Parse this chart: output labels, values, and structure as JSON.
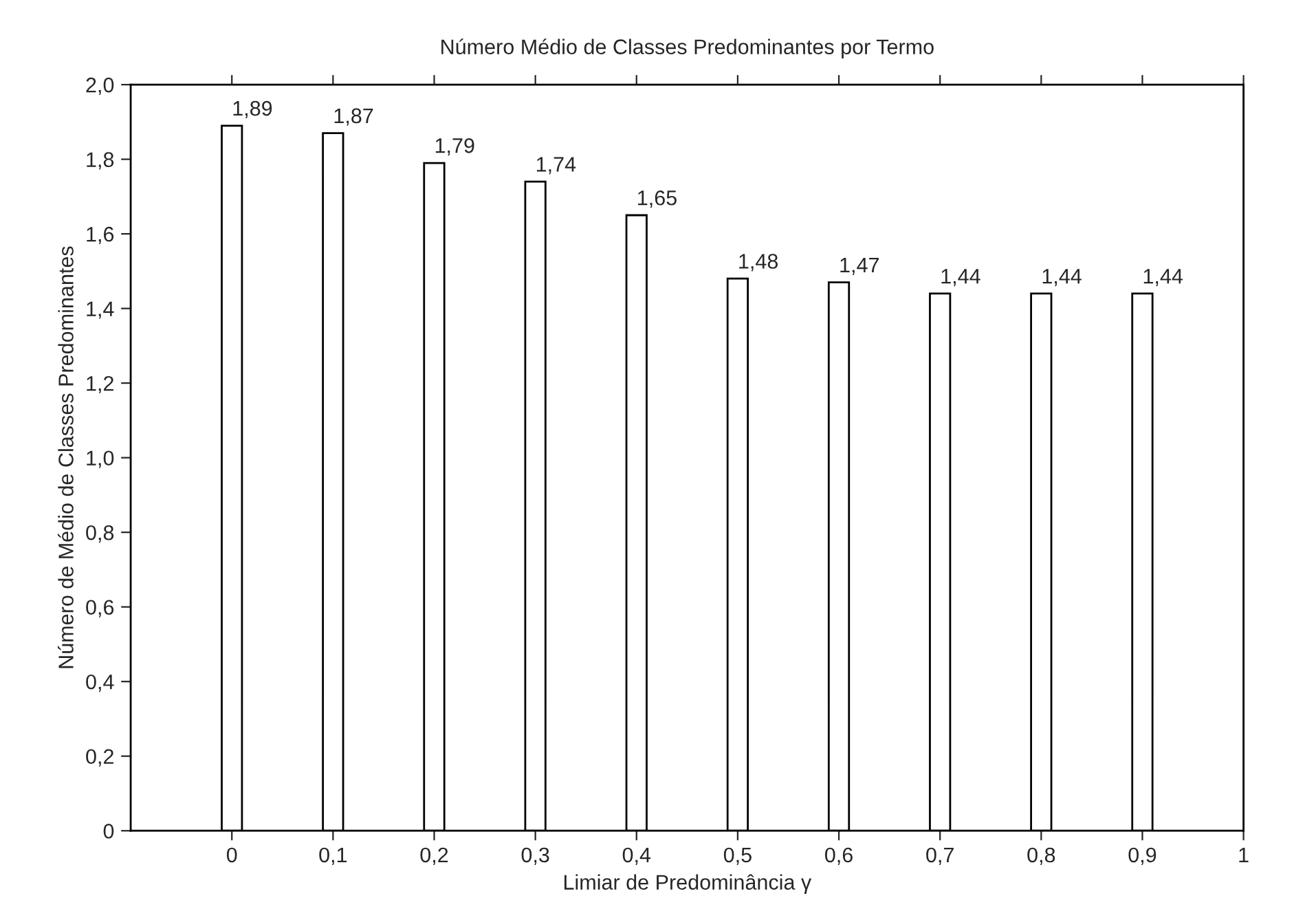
{
  "chart_data": {
    "type": "bar",
    "title": "Número Médio de Classes Predominantes por Termo",
    "xlabel": "Limiar de Predominância γ",
    "ylabel": "Número de Médio de Classes Predominantes",
    "x": [
      0,
      0.1,
      0.2,
      0.3,
      0.4,
      0.5,
      0.6,
      0.7,
      0.8,
      0.9
    ],
    "values": [
      1.89,
      1.87,
      1.79,
      1.74,
      1.65,
      1.48,
      1.47,
      1.44,
      1.44,
      1.44
    ],
    "value_labels": [
      "1,89",
      "1,87",
      "1,79",
      "1,74",
      "1,65",
      "1,48",
      "1,47",
      "1,44",
      "1,44",
      "1,44"
    ],
    "color": "#ffffff",
    "xlim": [
      -0.1,
      1.0
    ],
    "xticks": [
      0,
      {
        "value": 0.1,
        "label": "0,1"
      },
      {
        "value": 0.2,
        "label": "0,2"
      },
      {
        "value": 0.3,
        "label": "0,3"
      },
      {
        "value": 0.4,
        "label": "0,4"
      },
      {
        "value": 0.5,
        "label": "0,5"
      },
      {
        "value": 0.6,
        "label": "0,6"
      },
      {
        "value": 0.7,
        "label": "0,7"
      },
      {
        "value": 0.8,
        "label": "0,8"
      },
      {
        "value": 0.9,
        "label": "0,9"
      },
      1
    ],
    "ylim": [
      0,
      2.0
    ],
    "yticks": [
      0,
      {
        "value": 0.2,
        "label": "0,2"
      },
      {
        "value": 0.4,
        "label": "0,4"
      },
      {
        "value": 0.6,
        "label": "0,6"
      },
      {
        "value": 0.8,
        "label": "0,8"
      },
      {
        "value": 1.0,
        "label": "1,0"
      },
      {
        "value": 1.2,
        "label": "1,2"
      },
      {
        "value": 1.4,
        "label": "1,4"
      },
      {
        "value": 1.6,
        "label": "1,6"
      },
      {
        "value": 1.8,
        "label": "1,8"
      },
      {
        "value": 2.0,
        "label": "2,0"
      }
    ],
    "grid": false
  }
}
